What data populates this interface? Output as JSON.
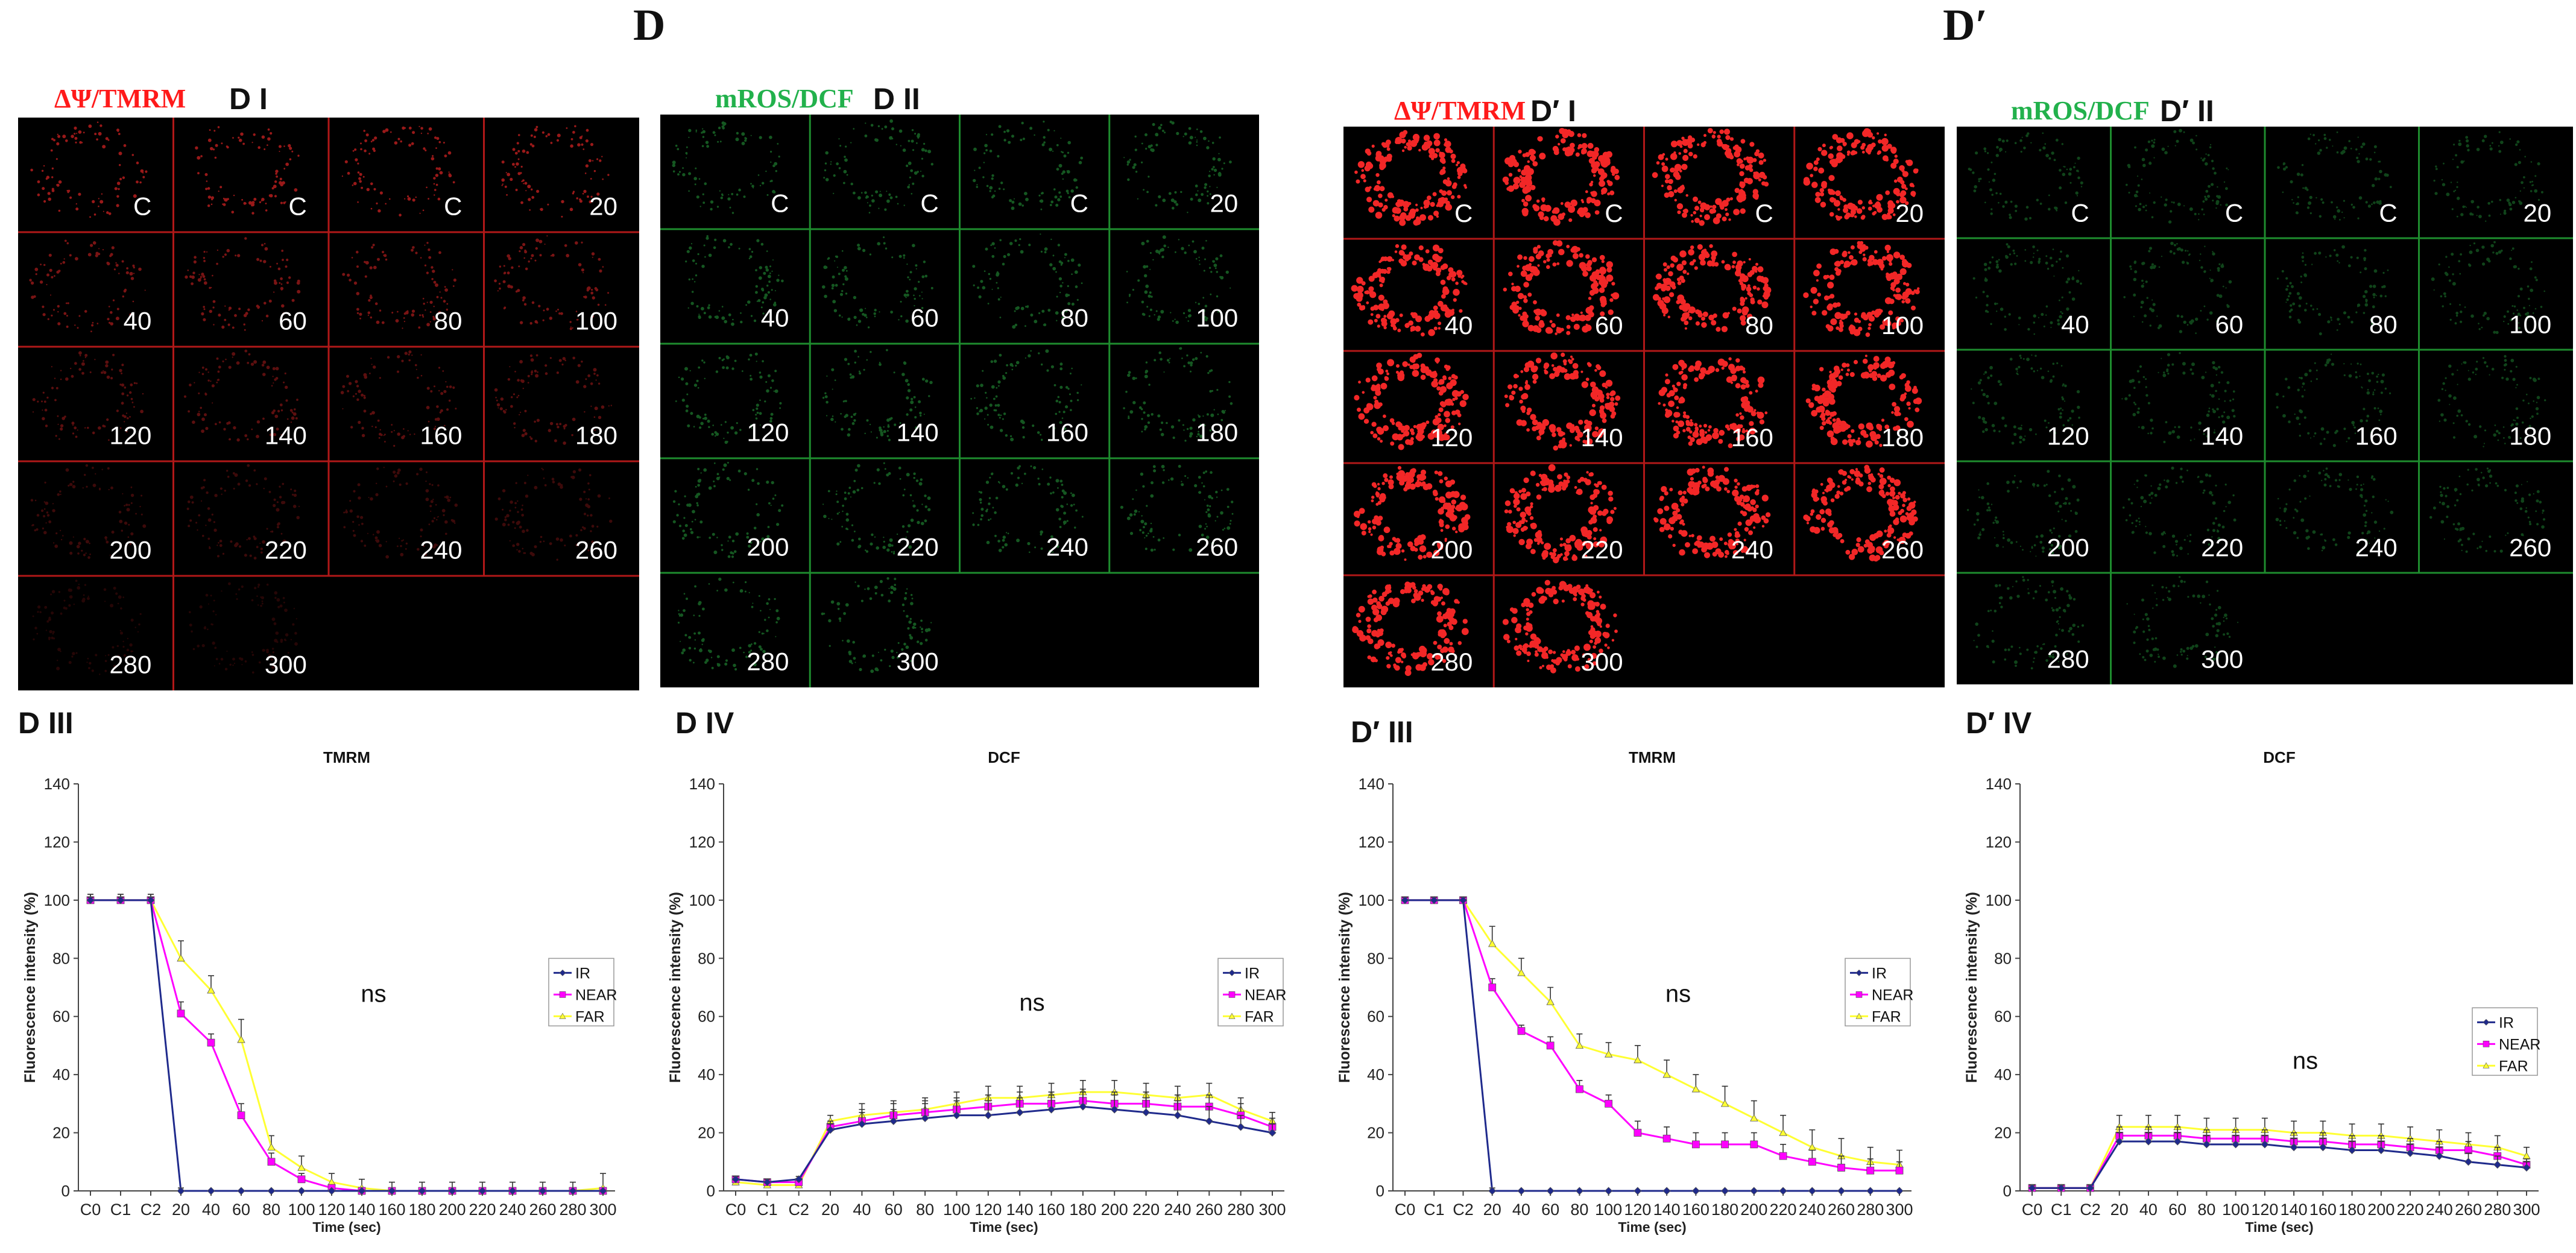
{
  "figure": {
    "panel_D": "D",
    "panel_Dprime": "D′"
  },
  "image_panels": [
    {
      "id": "DI",
      "sub": "D I",
      "title": "ΔΨ/TMRM",
      "title_color": "#ff1a1a",
      "channel": "red",
      "labels": [
        [
          "C",
          "C",
          "C",
          "20"
        ],
        [
          "40",
          "60",
          "80",
          "100"
        ],
        [
          "120",
          "140",
          "160",
          "180"
        ],
        [
          "200",
          "220",
          "240",
          "260"
        ],
        [
          "280",
          "300",
          "",
          ""
        ]
      ]
    },
    {
      "id": "DII",
      "sub": "D II",
      "title": "mROS/DCF",
      "title_color": "#22b14c",
      "channel": "green",
      "labels": [
        [
          "C",
          "C",
          "C",
          "20"
        ],
        [
          "40",
          "60",
          "80",
          "100"
        ],
        [
          "120",
          "140",
          "160",
          "180"
        ],
        [
          "200",
          "220",
          "240",
          "260"
        ],
        [
          "280",
          "300",
          "",
          ""
        ]
      ]
    },
    {
      "id": "DpI",
      "sub": "D′ I",
      "title": "ΔΨ/TMRM",
      "title_color": "#ff1a1a",
      "channel": "red",
      "labels": [
        [
          "C",
          "C",
          "C",
          "20"
        ],
        [
          "40",
          "60",
          "80",
          "100"
        ],
        [
          "120",
          "140",
          "160",
          "180"
        ],
        [
          "200",
          "220",
          "240",
          "260"
        ],
        [
          "280",
          "300",
          "",
          ""
        ]
      ]
    },
    {
      "id": "DpII",
      "sub": "D′ II",
      "title": "mROS/DCF",
      "title_color": "#22b14c",
      "channel": "green",
      "labels": [
        [
          "C",
          "C",
          "C",
          "20"
        ],
        [
          "40",
          "60",
          "80",
          "100"
        ],
        [
          "120",
          "140",
          "160",
          "180"
        ],
        [
          "200",
          "220",
          "240",
          "260"
        ],
        [
          "280",
          "300",
          "",
          ""
        ]
      ]
    }
  ],
  "chart_data": [
    {
      "id": "DIII",
      "panel_label": "D III",
      "type": "line",
      "title": "TMRM",
      "xlabel": "Time (sec)",
      "ylabel": "Fluorescence intensity (%)",
      "ylim": [
        0,
        140
      ],
      "yticks": [
        "0",
        "20",
        "40",
        "60",
        "80",
        "100",
        "120",
        "140"
      ],
      "categories": [
        "C0",
        "C1",
        "C2",
        "20",
        "40",
        "60",
        "80",
        "100",
        "120",
        "140",
        "160",
        "180",
        "200",
        "220",
        "240",
        "260",
        "280",
        "300"
      ],
      "annotation": "ns",
      "series": [
        {
          "name": "IR",
          "color": "#1f2a8c",
          "marker": "diamond",
          "values": [
            100,
            100,
            100,
            0,
            0,
            0,
            0,
            0,
            0,
            0,
            0,
            0,
            0,
            0,
            0,
            0,
            0,
            0
          ],
          "errors": [
            1,
            1,
            1,
            1,
            0,
            0,
            0,
            0,
            0,
            0,
            0,
            0,
            0,
            0,
            0,
            0,
            0,
            0
          ]
        },
        {
          "name": "NEAR",
          "color": "#ff00ff",
          "marker": "square",
          "values": [
            100,
            100,
            100,
            61,
            51,
            26,
            10,
            4,
            1,
            0,
            0,
            0,
            0,
            0,
            0,
            0,
            0,
            0
          ],
          "errors": [
            2,
            2,
            2,
            4,
            3,
            4,
            3,
            2,
            1,
            1,
            1,
            1,
            1,
            1,
            1,
            1,
            1,
            1
          ]
        },
        {
          "name": "FAR",
          "color": "#ffff33",
          "marker": "triangle",
          "values": [
            100,
            100,
            100,
            80,
            69,
            52,
            15,
            8,
            3,
            1,
            0,
            0,
            0,
            0,
            0,
            0,
            0,
            1
          ],
          "errors": [
            2,
            2,
            2,
            6,
            5,
            7,
            4,
            4,
            3,
            3,
            3,
            3,
            3,
            3,
            3,
            3,
            3,
            5
          ]
        }
      ]
    },
    {
      "id": "DIV",
      "panel_label": "D IV",
      "type": "line",
      "title": "DCF",
      "xlabel": "Time (sec)",
      "ylabel": "Fluorescence intensity (%)",
      "ylim": [
        0,
        140
      ],
      "yticks": [
        "0",
        "20",
        "40",
        "60",
        "80",
        "100",
        "120",
        "140"
      ],
      "categories": [
        "C0",
        "C1",
        "C2",
        "20",
        "40",
        "60",
        "80",
        "100",
        "120",
        "140",
        "160",
        "180",
        "200",
        "220",
        "240",
        "260",
        "280",
        "300"
      ],
      "annotation": "ns",
      "series": [
        {
          "name": "IR",
          "color": "#1f2a8c",
          "marker": "diamond",
          "values": [
            4,
            3,
            4,
            21,
            23,
            24,
            25,
            26,
            26,
            27,
            28,
            29,
            28,
            27,
            26,
            24,
            22,
            20
          ],
          "errors": [
            1,
            1,
            1,
            2,
            4,
            4,
            5,
            5,
            5,
            5,
            5,
            5,
            5,
            5,
            5,
            5,
            4,
            3
          ]
        },
        {
          "name": "NEAR",
          "color": "#ff00ff",
          "marker": "square",
          "values": [
            4,
            3,
            3,
            22,
            24,
            26,
            27,
            28,
            29,
            30,
            30,
            31,
            30,
            30,
            29,
            29,
            26,
            22
          ],
          "errors": [
            1,
            1,
            1,
            2,
            4,
            4,
            4,
            4,
            4,
            4,
            4,
            4,
            4,
            4,
            4,
            4,
            4,
            3
          ]
        },
        {
          "name": "FAR",
          "color": "#ffff33",
          "marker": "triangle",
          "values": [
            3,
            2,
            2,
            24,
            26,
            27,
            28,
            30,
            32,
            32,
            33,
            34,
            34,
            33,
            32,
            33,
            28,
            24
          ],
          "errors": [
            1,
            1,
            1,
            2,
            4,
            4,
            4,
            4,
            4,
            4,
            4,
            4,
            4,
            4,
            4,
            4,
            4,
            3
          ]
        }
      ]
    },
    {
      "id": "DpIII",
      "panel_label": "D′ III",
      "type": "line",
      "title": "TMRM",
      "xlabel": "Time (sec)",
      "ylabel": "Fluorescence intensity (%)",
      "ylim": [
        0,
        140
      ],
      "yticks": [
        "0",
        "20",
        "40",
        "60",
        "80",
        "100",
        "120",
        "140"
      ],
      "categories": [
        "C0",
        "C1",
        "C2",
        "20",
        "40",
        "60",
        "80",
        "100",
        "120",
        "140",
        "160",
        "180",
        "200",
        "220",
        "240",
        "260",
        "280",
        "300"
      ],
      "annotation": "ns",
      "series": [
        {
          "name": "IR",
          "color": "#1f2a8c",
          "marker": "diamond",
          "values": [
            100,
            100,
            100,
            0,
            0,
            0,
            0,
            0,
            0,
            0,
            0,
            0,
            0,
            0,
            0,
            0,
            0,
            0
          ],
          "errors": [
            1,
            1,
            1,
            1,
            0,
            0,
            0,
            0,
            0,
            0,
            0,
            0,
            0,
            0,
            0,
            0,
            0,
            0
          ]
        },
        {
          "name": "NEAR",
          "color": "#ff00ff",
          "marker": "square",
          "values": [
            100,
            100,
            100,
            70,
            55,
            50,
            35,
            30,
            20,
            18,
            16,
            16,
            16,
            12,
            10,
            8,
            7,
            7
          ],
          "errors": [
            1,
            1,
            1,
            3,
            2,
            3,
            3,
            3,
            4,
            4,
            4,
            4,
            4,
            4,
            4,
            4,
            4,
            3
          ]
        },
        {
          "name": "FAR",
          "color": "#ffff33",
          "marker": "triangle",
          "values": [
            100,
            100,
            100,
            85,
            75,
            65,
            50,
            47,
            45,
            40,
            35,
            30,
            25,
            20,
            15,
            12,
            10,
            9
          ],
          "errors": [
            1,
            1,
            1,
            6,
            5,
            5,
            4,
            4,
            5,
            5,
            5,
            6,
            6,
            6,
            6,
            6,
            5,
            5
          ]
        }
      ]
    },
    {
      "id": "DpIV",
      "panel_label": "D′ IV",
      "type": "line",
      "title": "DCF",
      "xlabel": "Time (sec)",
      "ylabel": "Fluorescence intensity (%)",
      "ylim": [
        0,
        140
      ],
      "yticks": [
        "0",
        "20",
        "40",
        "60",
        "80",
        "100",
        "120",
        "140"
      ],
      "categories": [
        "C0",
        "C1",
        "C2",
        "20",
        "40",
        "60",
        "80",
        "100",
        "120",
        "140",
        "160",
        "180",
        "200",
        "220",
        "240",
        "260",
        "280",
        "300"
      ],
      "annotation": "ns",
      "series": [
        {
          "name": "IR",
          "color": "#1f2a8c",
          "marker": "diamond",
          "values": [
            1,
            1,
            1,
            17,
            17,
            17,
            16,
            16,
            16,
            15,
            15,
            14,
            14,
            13,
            12,
            10,
            9,
            8
          ],
          "errors": [
            1,
            1,
            1,
            3,
            3,
            3,
            3,
            3,
            3,
            3,
            3,
            3,
            3,
            3,
            3,
            3,
            3,
            2
          ]
        },
        {
          "name": "NEAR",
          "color": "#ff00ff",
          "marker": "square",
          "values": [
            1,
            1,
            1,
            19,
            19,
            19,
            18,
            18,
            18,
            17,
            17,
            16,
            16,
            15,
            14,
            14,
            12,
            9
          ],
          "errors": [
            1,
            1,
            1,
            3,
            3,
            3,
            3,
            3,
            3,
            3,
            3,
            3,
            3,
            3,
            3,
            3,
            3,
            2
          ]
        },
        {
          "name": "FAR",
          "color": "#ffff33",
          "marker": "triangle",
          "values": [
            1,
            1,
            1,
            22,
            22,
            22,
            21,
            21,
            21,
            20,
            20,
            19,
            19,
            18,
            17,
            16,
            15,
            12
          ],
          "errors": [
            1,
            1,
            1,
            4,
            4,
            4,
            4,
            4,
            4,
            4,
            4,
            4,
            4,
            4,
            4,
            4,
            4,
            3
          ]
        }
      ]
    }
  ]
}
